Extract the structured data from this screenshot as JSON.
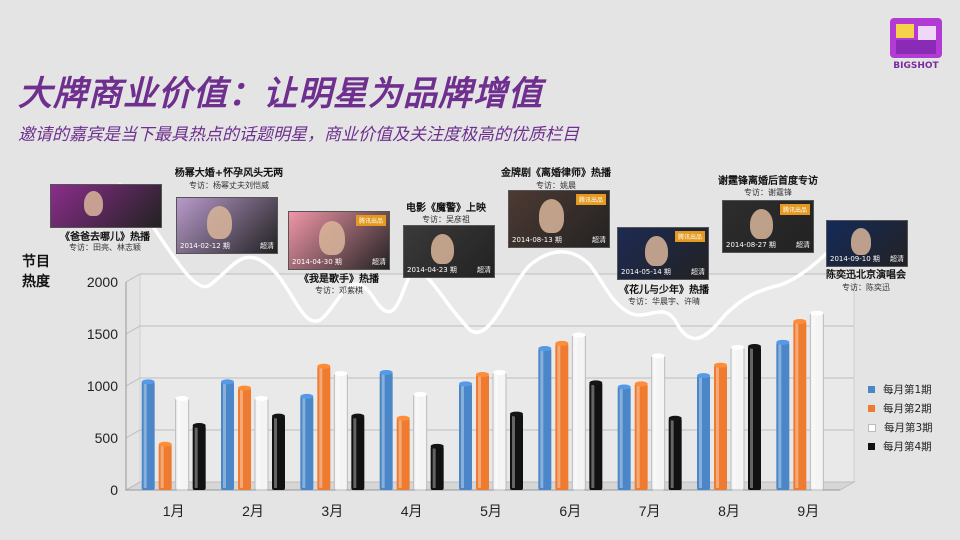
{
  "slide": {
    "title": "大牌商业价值：让明星为品牌增值",
    "subtitle": "邀请的嘉宾是当下最具热点的话题明星，商业价值及关注度极高的优质栏目",
    "y_axis_title_1": "节目",
    "y_axis_title_2": "热度"
  },
  "logo": {
    "text": "BIGSHOT"
  },
  "colors": {
    "title": "#6e2f8e",
    "s1": "#4a86c8",
    "s2": "#ee7b30",
    "s3": "#f4f4f4",
    "s4": "#111111",
    "line": "#ffffff"
  },
  "events": [
    {
      "caption": "《爸爸去哪儿》热播",
      "subcap": "专访：田亮、林志颖",
      "date": "",
      "tag": "",
      "badge": ""
    },
    {
      "caption": "杨幂大婚+怀孕风头无两",
      "subcap": "专访：杨幂丈夫刘恺威",
      "date": "2014-02-12 期",
      "tag": "超清",
      "badge": ""
    },
    {
      "caption": "《我是歌手》热播",
      "subcap": "专访：邓紫棋",
      "date": "2014-04-30 期",
      "tag": "超清",
      "badge": "腾讯出品"
    },
    {
      "caption": "电影《魔警》上映",
      "subcap": "专访：吴彦祖",
      "date": "2014-04-23 期",
      "tag": "超清",
      "badge": ""
    },
    {
      "caption": "金牌剧《离婚律师》热播",
      "subcap": "专访：姚晨",
      "date": "2014-08-13 期",
      "tag": "超清",
      "badge": "腾讯出品"
    },
    {
      "caption": "《花儿与少年》热播",
      "subcap": "专访：华晨宇、许晴",
      "date": "2014-05-14 期",
      "tag": "超清",
      "badge": "腾讯出品"
    },
    {
      "caption": "谢霆锋离婚后首度专访",
      "subcap": "专访：谢霆锋",
      "date": "2014-08-27 期",
      "tag": "超清",
      "badge": "腾讯出品"
    },
    {
      "caption": "陈奕迅北京演唱会",
      "subcap": "专访：陈奕迅",
      "date": "2014-09-10 期",
      "tag": "超清",
      "badge": ""
    }
  ],
  "chart_data": {
    "type": "bar",
    "categories": [
      "1月",
      "2月",
      "3月",
      "4月",
      "5月",
      "6月",
      "7月",
      "8月",
      "9月"
    ],
    "series": [
      {
        "name": "每月第1期",
        "values": [
          1040,
          1040,
          900,
          1130,
          1020,
          1360,
          990,
          1100,
          1420
        ]
      },
      {
        "name": "每月第2期",
        "values": [
          440,
          980,
          1190,
          690,
          1110,
          1410,
          1020,
          1200,
          1620
        ]
      },
      {
        "name": "每月第3期",
        "values": [
          880,
          880,
          1120,
          920,
          1130,
          1490,
          1290,
          1370,
          1700
        ]
      },
      {
        "name": "每月第4期",
        "values": [
          620,
          710,
          710,
          420,
          730,
          1030,
          690,
          1380,
          null
        ]
      }
    ],
    "ylim": [
      0,
      2000
    ],
    "yticks": [
      "0",
      "500",
      "1000",
      "1500",
      "2000"
    ],
    "legend_position": "right",
    "grid": true
  }
}
